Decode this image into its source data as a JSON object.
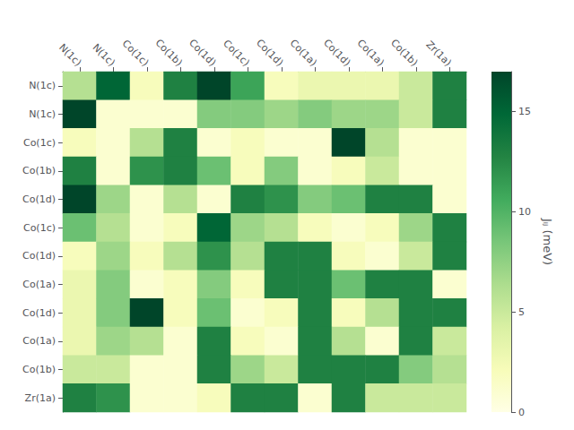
{
  "chart_data": {
    "type": "heatmap",
    "col_labels": [
      "N(1c)",
      "N(1c)",
      "Co(1c)",
      "Co(1b)",
      "Co(1d)",
      "Co(1c)",
      "Co(1d)",
      "Co(1a)",
      "Co(1d)",
      "Co(1a)",
      "Co(1b)",
      "Zr(1a)"
    ],
    "row_labels": [
      "N(1c)",
      "N(1c)",
      "Co(1c)",
      "Co(1b)",
      "Co(1d)",
      "Co(1c)",
      "Co(1d)",
      "Co(1a)",
      "Co(1d)",
      "Co(1a)",
      "Co(1b)",
      "Zr(1a)"
    ],
    "values": [
      [
        6,
        15,
        2,
        13,
        17,
        11,
        2,
        3,
        3,
        3,
        5,
        13
      ],
      [
        17,
        1,
        1,
        1,
        8,
        8,
        7,
        8,
        7,
        7,
        5,
        13
      ],
      [
        2,
        1,
        6,
        13,
        1,
        2,
        1,
        1,
        17,
        6,
        1,
        1
      ],
      [
        13,
        1,
        12,
        13,
        9,
        2,
        8,
        1,
        2,
        5,
        1,
        1
      ],
      [
        17,
        7,
        1,
        6,
        1,
        13,
        12,
        8,
        9,
        13,
        13,
        1
      ],
      [
        9,
        6,
        1,
        2,
        15,
        7,
        6,
        2,
        1,
        2,
        7,
        13
      ],
      [
        2,
        7,
        2,
        6,
        12,
        6,
        13,
        13,
        2,
        1,
        5,
        13
      ],
      [
        3,
        8,
        1,
        2,
        8,
        2,
        13,
        13,
        9,
        13,
        13,
        1
      ],
      [
        3,
        8,
        17,
        2,
        9,
        1,
        2,
        13,
        2,
        6,
        13,
        13
      ],
      [
        3,
        7,
        6,
        1,
        13,
        2,
        1,
        13,
        6,
        1,
        13,
        5
      ],
      [
        5,
        5,
        1,
        1,
        13,
        7,
        5,
        13,
        13,
        13,
        8,
        6
      ],
      [
        13,
        12,
        1,
        1,
        2,
        13,
        13,
        1,
        13,
        5,
        5,
        5
      ]
    ],
    "colorbar_range": [
      0,
      17
    ],
    "colorbar_ticks": [
      0,
      5,
      10,
      15
    ],
    "colorbar_label": "Jᵢⱼ (meV)",
    "grid": false
  }
}
